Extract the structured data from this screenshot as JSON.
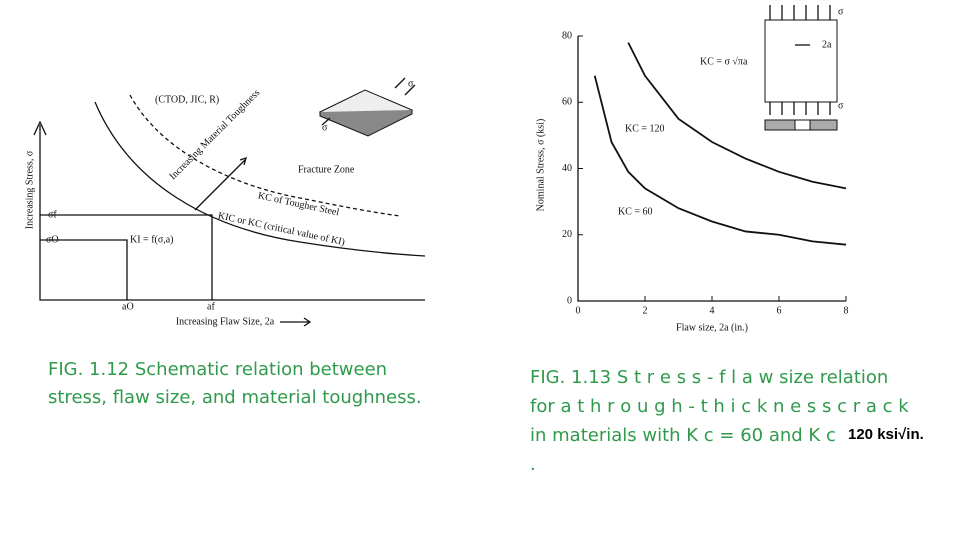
{
  "left_figure": {
    "y_axis_label": "Increasing Stress, σ",
    "x_axis_label": "Increasing Flaw Size, 2a",
    "labels": [
      "(CTOD, JIC, R)",
      "Increasing Material Toughness",
      "Fracture Zone",
      "KC of Tougher Steel",
      "KIC or KC (critical value of KI)",
      "σf",
      "σO",
      "KI = f(σ,a)",
      "aO",
      "af",
      "σ",
      "σ"
    ]
  },
  "chart_data": {
    "type": "line",
    "ylabel": "Nominal Stress, σ (ksi)",
    "xlabel": "Flaw size, 2a (in.)",
    "xlim": [
      0,
      8
    ],
    "ylim": [
      0,
      80
    ],
    "xticks": [
      0,
      2,
      4,
      6,
      8
    ],
    "yticks": [
      0,
      20,
      40,
      60,
      80
    ],
    "annotations": [
      "KC = 120",
      "KC = 60",
      "KC = σ √πa",
      "σ",
      "σ",
      "2a"
    ],
    "series": [
      {
        "name": "KC = 120",
        "color": "#111111",
        "x": [
          1.5,
          2,
          3,
          4,
          5,
          6,
          7,
          8
        ],
        "values": [
          78,
          68,
          55,
          48,
          43,
          39,
          36,
          34
        ]
      },
      {
        "name": "KC = 60",
        "color": "#111111",
        "x": [
          0.5,
          1,
          1.5,
          2,
          3,
          4,
          5,
          6,
          7,
          8
        ],
        "values": [
          68,
          48,
          39,
          34,
          28,
          24,
          21,
          20,
          18,
          17
        ]
      }
    ]
  },
  "captions": {
    "left": [
      "FIG. 1.12 Schematic relation between",
      "stress, flaw size, and material toughness."
    ],
    "right": [
      "FIG. 1.13 S t r e s s - f l a w size relation",
      "for a t h r o u g h - t h i c k n e s s c r a c k",
      "in materials with K c = 60 and K c",
      "."
    ],
    "overlay": "120 ksi√in."
  }
}
